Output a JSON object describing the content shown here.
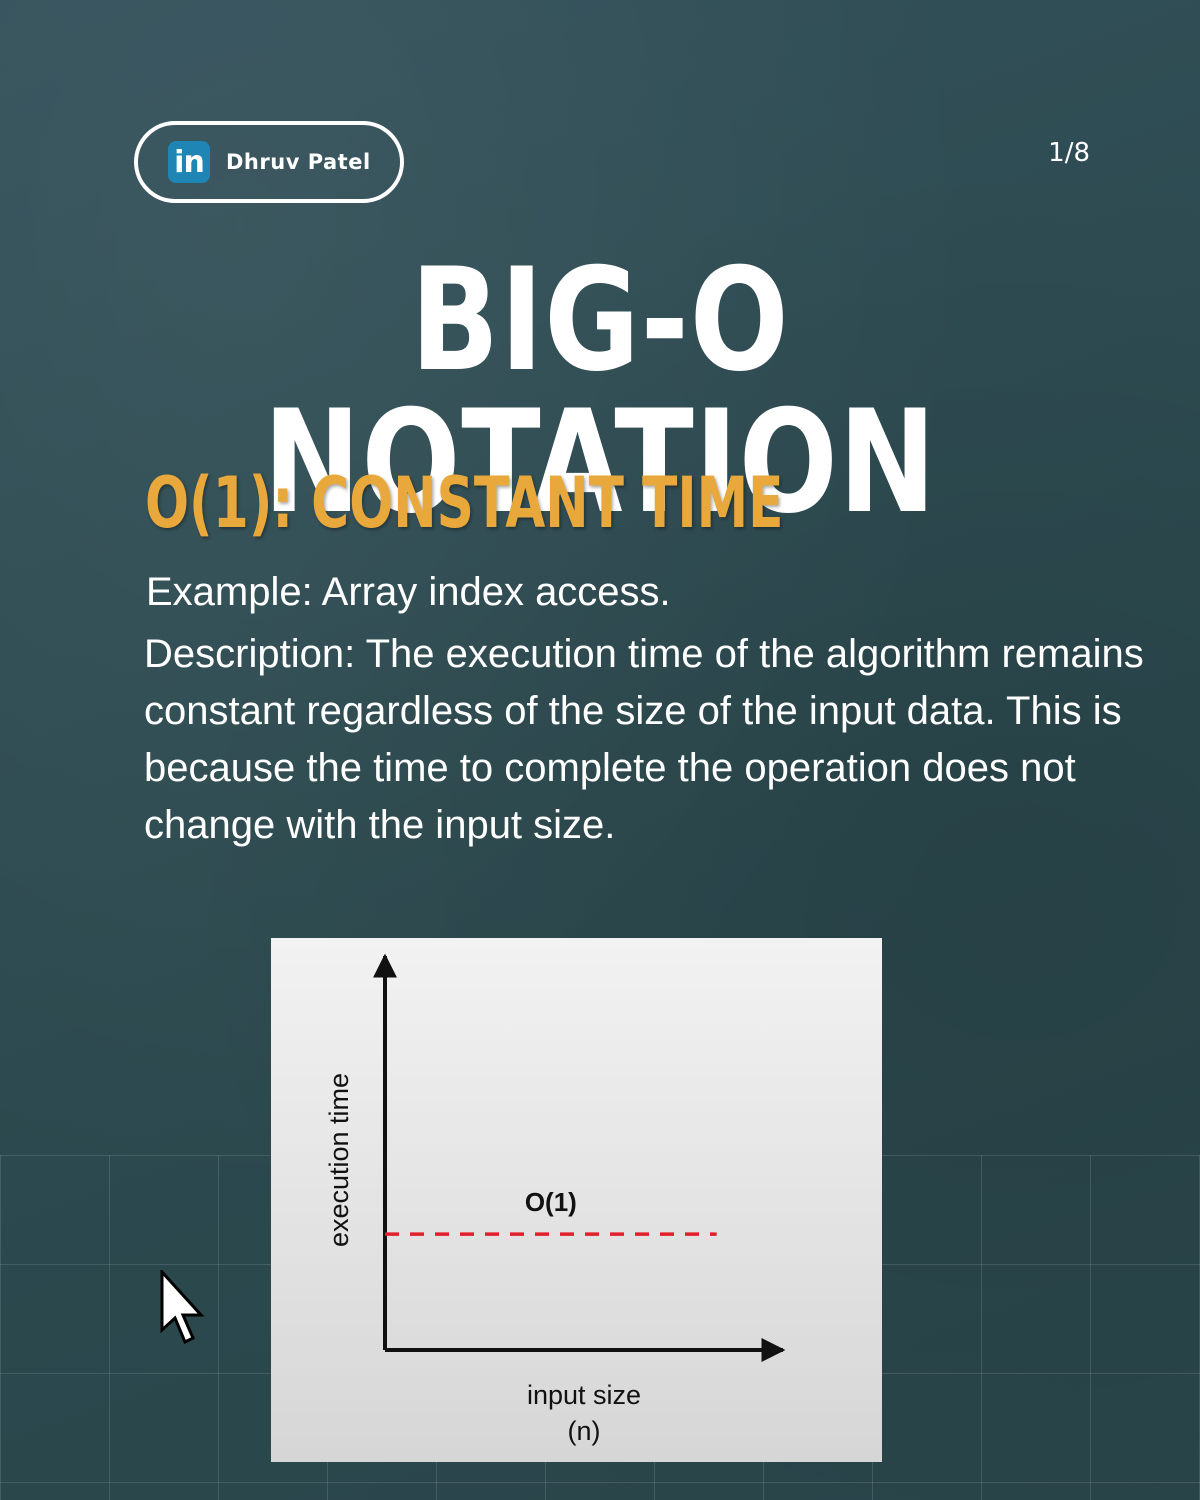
{
  "badge": {
    "platform": "in",
    "name": "Dhruv Patel"
  },
  "page_indicator": "1/8",
  "title": "BIG-O NOTATION",
  "subtitle": "O(1): CONSTANT TIME",
  "example": "Example: Array index access.",
  "description": "Description: The execution time of the algorithm remains constant regardless of the size of the input data. This is because the time to complete the operation does not change with the input size.",
  "colors": {
    "background": "#2e4a4f",
    "accent": "#e9a83c",
    "line": "#e0202a"
  },
  "chart_data": {
    "type": "line",
    "xlabel": "input size\n(n)",
    "ylabel": "execution time",
    "series": [
      {
        "name": "O(1)",
        "style": "dashed",
        "color": "#e0202a",
        "x": [
          0,
          1
        ],
        "y": [
          1,
          1
        ]
      }
    ],
    "xlim": [
      0,
      1.2
    ],
    "ylim": [
      0,
      3.4
    ],
    "grid": false
  },
  "cursor_icon": "mouse-pointer-icon"
}
